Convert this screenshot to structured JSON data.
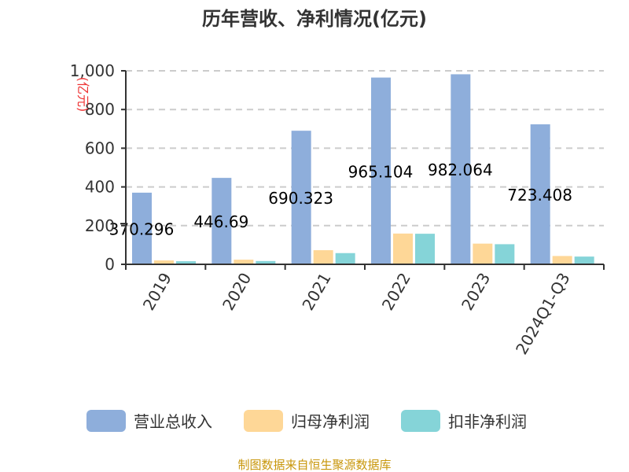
{
  "chart_data": {
    "type": "bar",
    "title": "历年营收、净利情况(亿元)",
    "ylabel": "(亿元)",
    "ylim": [
      0,
      1000
    ],
    "yticks": [
      "0",
      "200",
      "400",
      "600",
      "800",
      "1,000"
    ],
    "grid": true,
    "legend_position": "bottom",
    "categories": [
      "2019",
      "2020",
      "2021",
      "2022",
      "2023",
      "2024Q1-Q3"
    ],
    "series": [
      {
        "name": "营业总收入",
        "color": "#8eaedb",
        "values": [
          370.296,
          446.69,
          690.323,
          965.104,
          982.064,
          723.408
        ],
        "labels": [
          "370.296",
          "446.69",
          "690.323",
          "965.104",
          "982.064",
          "723.408"
        ]
      },
      {
        "name": "归母净利润",
        "color": "#fed797",
        "values": [
          20,
          24,
          73,
          159,
          107,
          43
        ]
      },
      {
        "name": "扣非净利润",
        "color": "#85d4d8",
        "values": [
          16,
          17,
          58,
          158,
          104,
          40
        ]
      }
    ]
  },
  "source": "制图数据来自恒生聚源数据库"
}
